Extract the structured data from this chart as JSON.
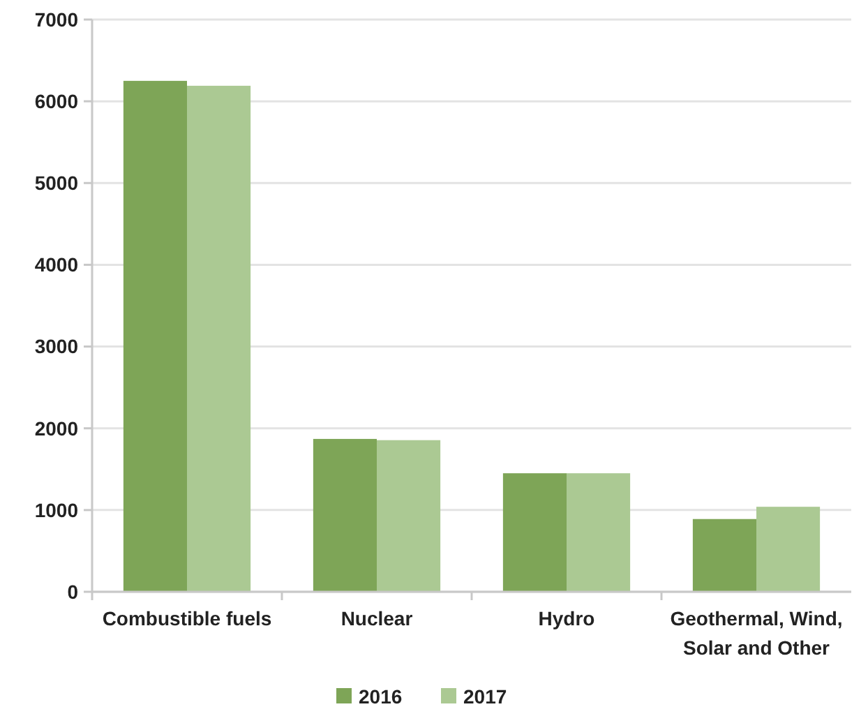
{
  "chart_data": {
    "type": "bar",
    "categories": [
      "Combustible fuels",
      "Nuclear",
      "Hydro",
      "Geothermal, Wind, Solar and Other"
    ],
    "series": [
      {
        "name": "2016",
        "color": "#7ea557",
        "values": [
          6250,
          1870,
          1450,
          890
        ]
      },
      {
        "name": "2017",
        "color": "#abc993",
        "values": [
          6190,
          1855,
          1450,
          1040
        ]
      }
    ],
    "ylim": [
      0,
      7000
    ],
    "yticks": [
      0,
      1000,
      2000,
      3000,
      4000,
      5000,
      6000,
      7000
    ],
    "grid": "y",
    "legend": "bottom"
  }
}
